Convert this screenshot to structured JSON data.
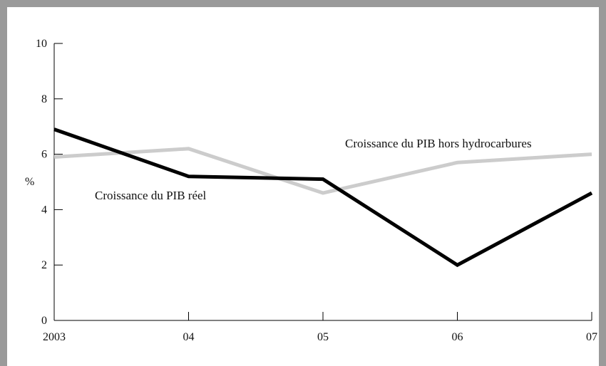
{
  "chart_data": {
    "type": "line",
    "categories": [
      "2003",
      "04",
      "05",
      "06",
      "07"
    ],
    "ylabel": "%",
    "ylim": [
      0,
      10
    ],
    "yticks": [
      "0",
      "2",
      "4",
      "6",
      "8",
      "10"
    ],
    "grid": false,
    "series": [
      {
        "name": "Croissance du PIB réel",
        "values": [
          6.9,
          5.2,
          5.1,
          2.0,
          4.6
        ],
        "color": "#000000"
      },
      {
        "name": "Croissance du PIB hors hydrocarbures",
        "values": [
          5.9,
          6.2,
          4.6,
          5.7,
          6.0
        ],
        "color": "#cccccc"
      }
    ]
  }
}
